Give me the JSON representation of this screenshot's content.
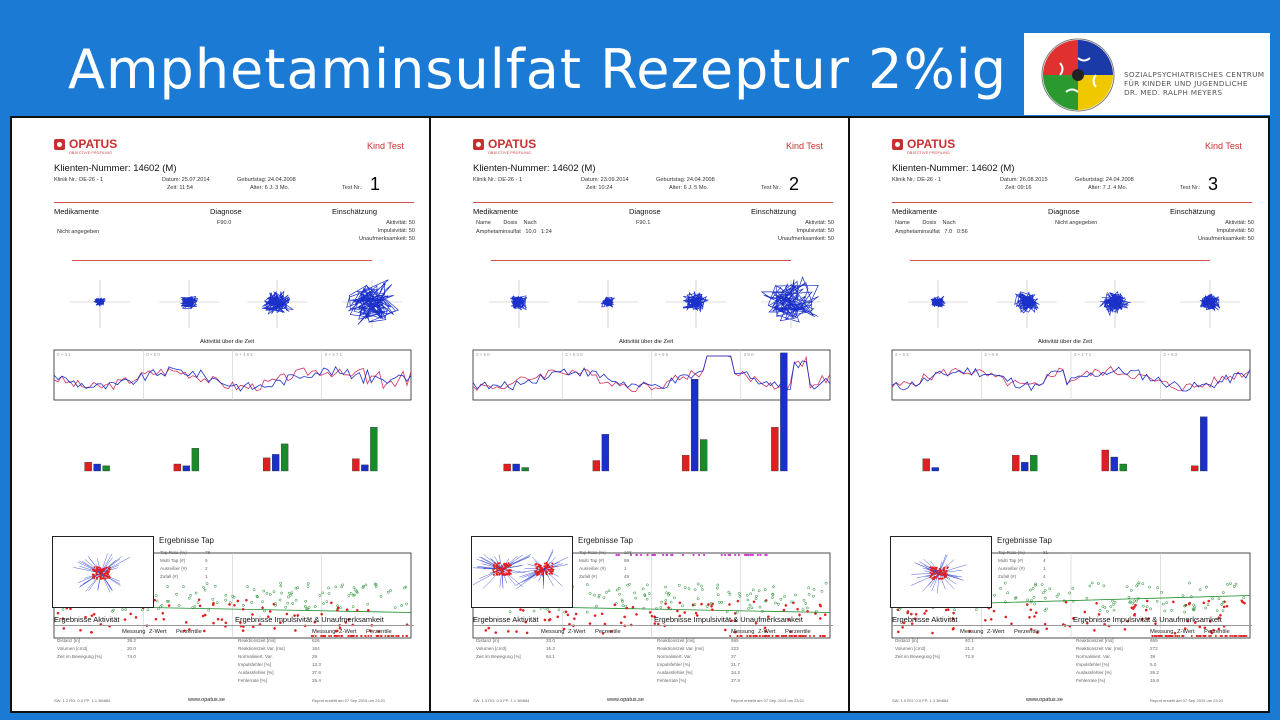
{
  "slide": {
    "title": "Amphetaminsulfat Rezeptur 2%ig"
  },
  "logo": {
    "lines": [
      "SOZIALPSYCHIATRISCHES CENTRUM",
      "FÜR KINDER UND JUGENDLICHE",
      "DR. MED. RALPH MEYERS"
    ],
    "colors": [
      "#e03030",
      "#1a3aa8",
      "#f0c800",
      "#2a9a30"
    ]
  },
  "reports": [
    {
      "brand": "OPATUS",
      "brand_sub": "OBJECTIVE PROFILING",
      "kind": "Kind Test",
      "client": "Klienten-Nummer:  14602  (M)",
      "klinik": "Klinik Nr.: DE-26 - 1",
      "datum": "Datum: 25.07.2014",
      "zeit": "Zeit: 11:54",
      "geburtstag": "Geburtstag: 24.04.2008",
      "alter": "Alter: 6 J. 3 Mo.",
      "test_label": "Test Nr.:",
      "test_no": "1",
      "med_head": "Medikamente",
      "diag_head": "Diagnose",
      "eins_head": "Einschätzung",
      "med_cols": "",
      "med_row": "Nicht angegeben",
      "diagnosis": "F90.0",
      "ratings": [
        "Aktivität: 50",
        "Impulsivität: 50",
        "Unaufmerksamkeit: 50"
      ],
      "activity_title": "Aktivität über die Zeit",
      "ergebnisse_tap": "Ergebnisse Tap",
      "tap_stats": [
        [
          "Tap Rate (%)",
          "78"
        ],
        [
          "Multi Tap (#)",
          "5"
        ],
        [
          "Ausreißer (#)",
          "2"
        ],
        [
          "Zufall (#)",
          "1"
        ]
      ],
      "aktivitaet_head": "Ergebnisse Aktivität",
      "impuls_head": "Ergebnisse Impulsivität & Unaufmerksamkeit",
      "cols": [
        "Messung",
        "Z-Wert",
        "Perzentile"
      ],
      "akt_rows": [
        [
          "Distanz [m]",
          "39.2"
        ],
        [
          "Volumen [cm3]",
          "20.0"
        ],
        [
          "Zeit im Bewegung [%]",
          "74.0"
        ]
      ],
      "imp_rows": [
        [
          "Reaktionszeit [ms]",
          "626"
        ],
        [
          "Reaktionszeit Var. [ms]",
          "164"
        ],
        [
          "Normalisiert. Var.",
          "29"
        ],
        [
          "Impulsfehler [%]",
          "13.3"
        ],
        [
          "Auslassfehler [%]",
          "37.6"
        ],
        [
          "Fehlerrate [%]",
          "25.4"
        ]
      ],
      "footer_left": "SW: 1.2   RG: 0.0   FP: 1.1   3fb884",
      "footer_mid": "www.opatus.se",
      "footer_right": "Report erstellt am 07 Sep 2015 um 23:21",
      "quad_labels": [
        "0 + 4 1",
        "0 + 5 0",
        "0 + 4 8 2",
        "0 + 2 7 1"
      ]
    },
    {
      "brand": "OPATUS",
      "brand_sub": "OBJECTIVE PROFILING",
      "kind": "Kind Test",
      "client": "Klienten-Nummer:  14602  (M)",
      "klinik": "Klinik Nr.: DE-26 - 1",
      "datum": "Datum: 23.09.2014",
      "zeit": "Zeit: 10:24",
      "geburtstag": "Geburtstag: 24.04.2008",
      "alter": "Alter: 6 J. 5 Mo.",
      "test_label": "Test Nr.:",
      "test_no": "2",
      "med_head": "Medikamente",
      "diag_head": "Diagnose",
      "eins_head": "Einschätzung",
      "med_cols": "Name        Dosis    Nach",
      "med_row": "Amphetaminsulfat   10.0   1:24",
      "diagnosis": "F90.1",
      "ratings": [
        "Aktivität: 50",
        "Impulsivität: 50",
        "Unaufmerksamkeit: 50"
      ],
      "activity_title": "Aktivität über die Zeit",
      "ergebnisse_tap": "Ergebnisse Tap",
      "tap_stats": [
        [
          "Tap Rate (%)",
          "103"
        ],
        [
          "Multi Tap (#)",
          "89"
        ],
        [
          "Ausreißer (#)",
          "1"
        ],
        [
          "Zufall (#)",
          "49"
        ]
      ],
      "aktivitaet_head": "Ergebnisse Aktivität",
      "impuls_head": "Ergebnisse Impulsivität & Unaufmerksamkeit",
      "cols": [
        "Messung",
        "Z-Wert",
        "Perzentile"
      ],
      "akt_rows": [
        [
          "Distanz [m]",
          "33.0"
        ],
        [
          "Volumen [cm3]",
          "16.2"
        ],
        [
          "Zeit im Bewegung [%]",
          "64.1"
        ]
      ],
      "imp_rows": [
        [
          "Reaktionszeit [ms]",
          "695"
        ],
        [
          "Reaktionszeit Var. [ms]",
          "223"
        ],
        [
          "Normalisiert. Var.",
          "37"
        ],
        [
          "Impulsfehler [%]",
          "21.7"
        ],
        [
          "Auslassfehler [%]",
          "34.2"
        ],
        [
          "Fehlerrate [%]",
          "27.9"
        ]
      ],
      "footer_left": "SW: 1.3   RG: 0.0   FP: 1.1   3fb884",
      "footer_mid": "www.opatus.se",
      "footer_right": "Report erstellt am 07 Sep 2015 um 23:21",
      "quad_labels": [
        "2 + 5 0",
        "2 + 5 4 0",
        "2 + 6 5",
        "2 5 0"
      ]
    },
    {
      "brand": "OPATUS",
      "brand_sub": "OBJECTIVE PROFILING",
      "kind": "Kind Test",
      "client": "Klienten-Nummer:  14602  (M)",
      "klinik": "Klinik Nr.: DE-26 - 1",
      "datum": "Datum: 26.08.2015",
      "zeit": "Zeit: 09:16",
      "geburtstag": "Geburtstag: 24.04.2008",
      "alter": "Alter: 7 J. 4 Mo.",
      "test_label": "Test Nr.:",
      "test_no": "3",
      "med_head": "Medikamente",
      "diag_head": "Diagnose",
      "eins_head": "Einschätzung",
      "med_cols": "Name        Dosis    Nach",
      "med_row": "Amphetaminsulfat   7.0   0:56",
      "diagnosis": "Nicht angegeben",
      "ratings": [
        "Aktivität: 50",
        "Impulsivität: 50",
        "Unaufmerksamkeit: 50"
      ],
      "activity_title": "Aktivität über die Zeit",
      "ergebnisse_tap": "Ergebnisse Tap",
      "tap_stats": [
        [
          "Tap Rate (%)",
          "81"
        ],
        [
          "Multi Tap (#)",
          "4"
        ],
        [
          "Ausreißer (#)",
          "1"
        ],
        [
          "Zufall (#)",
          "4"
        ]
      ],
      "aktivitaet_head": "Ergebnisse Aktivität",
      "impuls_head": "Ergebnisse Impulsivität & Unaufmerksamkeit",
      "cols": [
        "Messung",
        "Z-Wert",
        "Perzentile"
      ],
      "akt_rows": [
        [
          "Distanz [m]",
          "40.1"
        ],
        [
          "Volumen [cm3]",
          "21.2"
        ],
        [
          "Zeit im Bewegung [%]",
          "72.9"
        ]
      ],
      "imp_rows": [
        [
          "Reaktionszeit [ms]",
          "659"
        ],
        [
          "Reaktionszeit Var. [ms]",
          "272"
        ],
        [
          "Normalisiert. Var.",
          "39"
        ],
        [
          "Impulsfehler [%]",
          "5.0"
        ],
        [
          "Auslassfehler [%]",
          "26.2"
        ],
        [
          "Fehlerrate [%]",
          "15.6"
        ]
      ],
      "footer_left": "SW: 1.0   RG: 0.0   FP: 1.3   3fb884",
      "footer_mid": "www.opatus.se",
      "footer_right": "Report erstellt am 07 Sep 2015 um 23:21",
      "quad_labels": [
        "2 + 6 3",
        "2 + 6 9",
        "2 + 1 7 1",
        "2 + 6 3"
      ]
    }
  ]
}
